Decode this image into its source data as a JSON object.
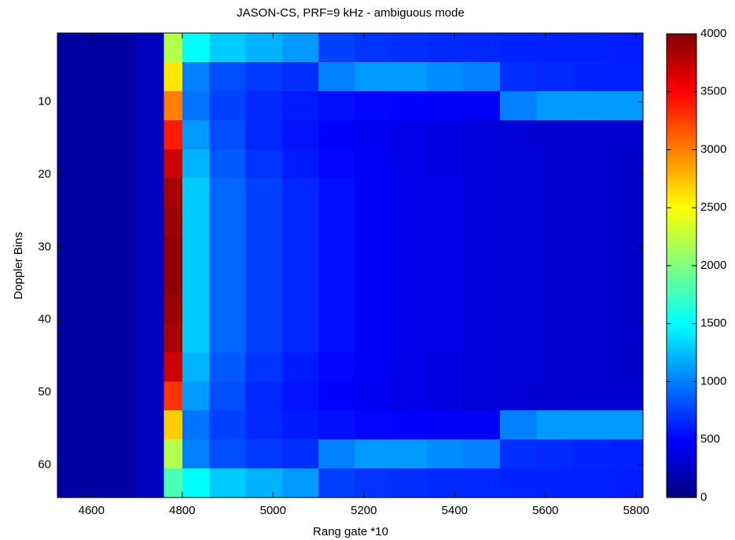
{
  "chart_data": {
    "type": "heatmap",
    "title": "JASON-CS, PRF=9 kHz - ambiguous mode",
    "x_label": "Rang gate *10",
    "y_label": "Doppler Bins",
    "xlim": [
      4525,
      5815
    ],
    "ylim": [
      0.5,
      64.5
    ],
    "y_reversed": true,
    "xticks": [
      4600,
      4800,
      5000,
      5200,
      5400,
      5600,
      5800
    ],
    "yticks": [
      10,
      20,
      30,
      40,
      50,
      60
    ],
    "x_edges": [
      4525,
      4700,
      4760,
      4800,
      4860,
      4940,
      5020,
      5100,
      5180,
      5260,
      5340,
      5420,
      5500,
      5580,
      5660,
      5740,
      5815
    ],
    "y_edges": [
      0.5,
      4.5,
      8.5,
      12.5,
      16.5,
      20.5,
      24.5,
      28.5,
      32.5,
      36.5,
      40.5,
      44.5,
      48.5,
      52.5,
      56.5,
      60.5,
      64.5
    ],
    "colormap": "jet",
    "clim": [
      0,
      4000
    ],
    "cticks": [
      0,
      500,
      1000,
      1500,
      2000,
      2500,
      3000,
      3500,
      4000
    ],
    "values": [
      [
        130,
        250,
        2200,
        1500,
        1300,
        1200,
        1100,
        750,
        700,
        680,
        660,
        650,
        640,
        630,
        620,
        610
      ],
      [
        130,
        250,
        2600,
        1000,
        800,
        720,
        680,
        1000,
        1100,
        1100,
        1050,
        1000,
        680,
        660,
        640,
        620
      ],
      [
        130,
        250,
        3000,
        950,
        750,
        660,
        600,
        560,
        520,
        500,
        480,
        470,
        1000,
        1100,
        1100,
        1100
      ],
      [
        130,
        250,
        3400,
        1100,
        800,
        650,
        570,
        500,
        450,
        410,
        380,
        360,
        340,
        330,
        320,
        310
      ],
      [
        130,
        250,
        3700,
        1200,
        850,
        700,
        600,
        520,
        460,
        420,
        390,
        370,
        350,
        330,
        315,
        305
      ],
      [
        130,
        250,
        3850,
        1300,
        900,
        750,
        650,
        550,
        480,
        430,
        400,
        370,
        350,
        330,
        310,
        300
      ],
      [
        130,
        250,
        3900,
        1300,
        900,
        750,
        650,
        550,
        480,
        430,
        400,
        370,
        350,
        330,
        310,
        300
      ],
      [
        130,
        250,
        3950,
        1300,
        900,
        750,
        650,
        550,
        480,
        430,
        400,
        370,
        350,
        330,
        310,
        300
      ],
      [
        130,
        250,
        3950,
        1300,
        900,
        750,
        650,
        550,
        480,
        430,
        400,
        370,
        350,
        330,
        310,
        300
      ],
      [
        130,
        250,
        3900,
        1300,
        900,
        750,
        650,
        550,
        480,
        430,
        400,
        370,
        350,
        330,
        310,
        300
      ],
      [
        130,
        250,
        3850,
        1300,
        900,
        750,
        650,
        550,
        480,
        430,
        400,
        370,
        350,
        330,
        310,
        300
      ],
      [
        130,
        250,
        3700,
        1200,
        850,
        700,
        600,
        520,
        460,
        420,
        390,
        370,
        350,
        330,
        315,
        305
      ],
      [
        130,
        250,
        3300,
        1100,
        800,
        650,
        570,
        500,
        450,
        410,
        380,
        360,
        340,
        330,
        320,
        310
      ],
      [
        130,
        250,
        2700,
        950,
        750,
        660,
        600,
        560,
        520,
        500,
        480,
        470,
        1000,
        1100,
        1100,
        1100
      ],
      [
        130,
        250,
        2200,
        1000,
        800,
        720,
        680,
        1000,
        1100,
        1100,
        1050,
        1000,
        680,
        660,
        640,
        620
      ],
      [
        130,
        250,
        1800,
        1500,
        1300,
        1200,
        1100,
        750,
        700,
        680,
        660,
        650,
        640,
        630,
        620,
        610
      ]
    ]
  }
}
